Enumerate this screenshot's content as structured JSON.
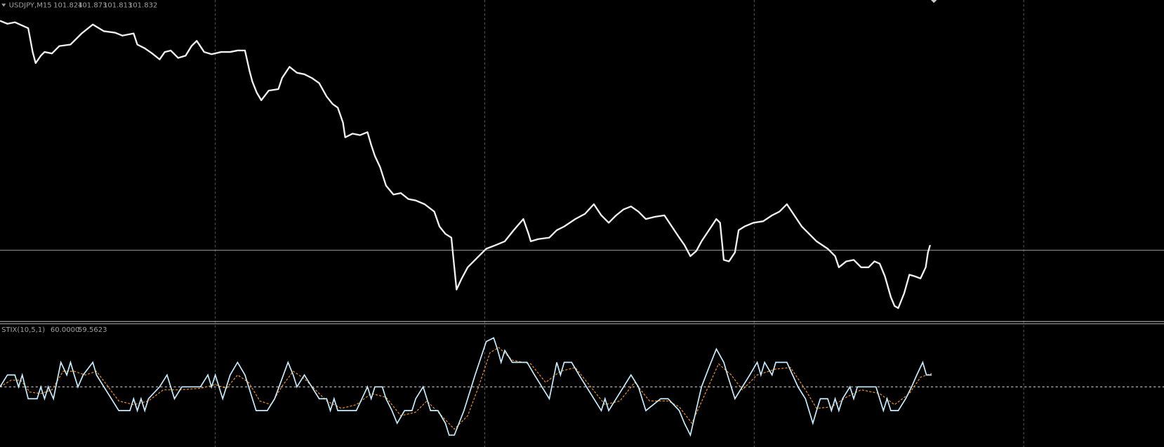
{
  "main_window": {
    "symbol": "USDJPY,M15",
    "ohlc": [
      101.824,
      101.873,
      101.813,
      101.832
    ]
  },
  "indicator_window": {
    "name": "STIX(10,5,1)",
    "values": [
      "60.0000",
      "59.5623"
    ]
  }
}
